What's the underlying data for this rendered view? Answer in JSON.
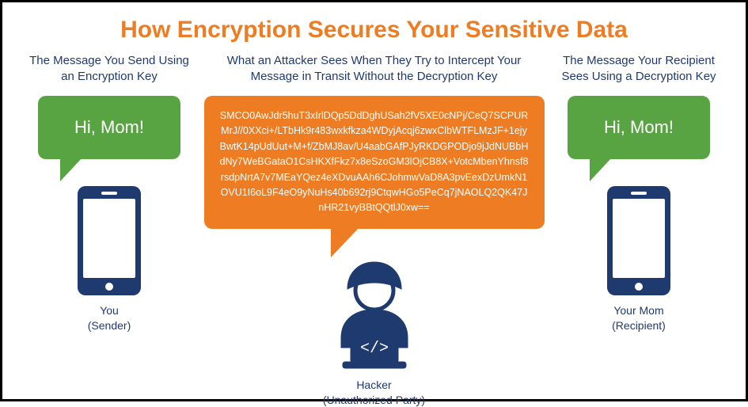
{
  "colors": {
    "title": "#ed7c23",
    "subhead": "#1f3a6e",
    "caption": "#1f3a6e",
    "bubble_green": "#58a442",
    "bubble_orange": "#ed7c23",
    "phone": "#1f3a6e",
    "hacker": "#1f3a6e",
    "white": "#ffffff"
  },
  "title": "How Encryption Secures Your Sensitive Data",
  "left": {
    "subhead": "The Message You Send Using an Encryption Key",
    "bubble_text": "Hi, Mom!",
    "caption_line1": "You",
    "caption_line2": "(Sender)"
  },
  "middle": {
    "subhead": "What an Attacker Sees When They Try to Intercept Your Message in Transit Without the Decryption Key",
    "cipher_text": "SMCO0AwJdr5huT3xIrlDQp5DdDghUSah2fV5XE0cNPj/CeQ7SCPURMrJ//0XXci+/LTbHk9r483wxkfkza4WDyjAcqj6zwxClbWTFLMzJF+1ejyBwtK14pUdUut+M+f/ZbMJ8av/U4aabGAfPJyRKDGPODjo9jJdNUBbHdNy7WeBGataO1CsHKXfFkz7x8eSzoGM3lOjCB8X+VotcMbenYhnsf8rsdpNrtA7v7MEaYQez4eXDvuAAh6CJohmwVaD8A3pvEexDzUmkN1OVU1I6oL9F4eO9yNuHs40b692rj9CtqwHGo5PeCq7jNAOLQ2QK47JnHR21vyBBtQQtlJ0xw==",
    "caption_line1": "Hacker",
    "caption_line2": "(Unauthorized Party)"
  },
  "right": {
    "subhead": "The Message Your Recipient Sees Using a Decryption Key",
    "bubble_text": "Hi, Mom!",
    "caption_line1": "Your Mom",
    "caption_line2": "(Recipient)"
  }
}
